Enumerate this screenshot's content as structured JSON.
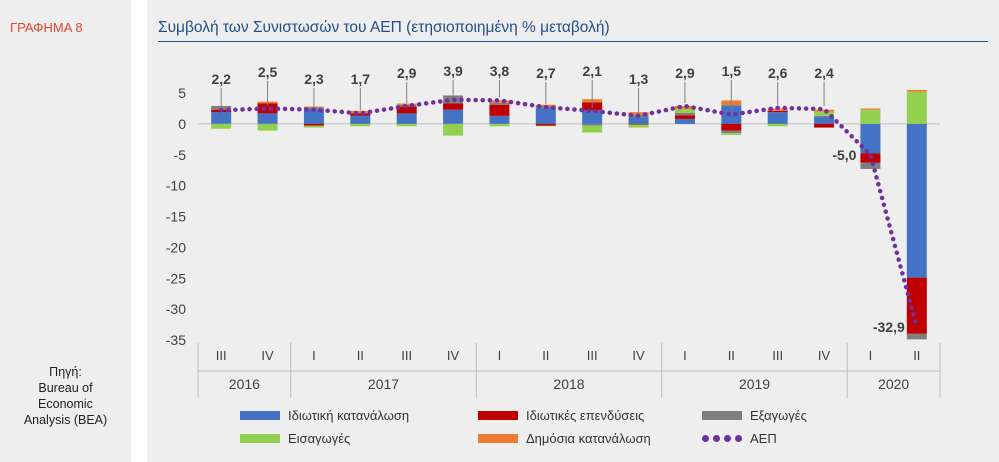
{
  "side_label": "ΓΡΑΦΗΜΑ 8",
  "source": [
    "Πηγή:",
    "Bureau of",
    "Economic",
    "Analysis (BEA)"
  ],
  "chart_data": {
    "type": "bar",
    "subtype": "stacked-bar-with-line",
    "title": "Συμβολή των Συνιστωσών του ΑΕΠ (ετησιοποιημένη % μεταβολή)",
    "ylim": [
      -35,
      5
    ],
    "yticks": [
      "5",
      "0",
      "-5",
      "-10",
      "-15",
      "-20",
      "-25",
      "-30",
      "-35"
    ],
    "quarter_labels": [
      "III",
      "IV",
      "I",
      "II",
      "III",
      "IV",
      "I",
      "II",
      "III",
      "IV",
      "I",
      "II",
      "III",
      "IV",
      "I",
      "II"
    ],
    "years": [
      {
        "label": "2016",
        "span": 2
      },
      {
        "label": "2017",
        "span": 4
      },
      {
        "label": "2018",
        "span": 4
      },
      {
        "label": "2019",
        "span": 4
      },
      {
        "label": "2020",
        "span": 2
      }
    ],
    "series": [
      {
        "name": "Ιδιωτική κατανάλωση",
        "color": "#4472c4",
        "values": [
          1.9,
          1.7,
          2.4,
          1.3,
          1.7,
          2.3,
          1.3,
          2.6,
          2.2,
          1.1,
          0.8,
          3.0,
          1.9,
          1.1,
          -4.8,
          -24.9
        ]
      },
      {
        "name": "Ιδιωτικές επενδύσεις",
        "color": "#c00000",
        "values": [
          0.4,
          1.6,
          -0.3,
          0.4,
          1.1,
          1.0,
          1.8,
          -0.3,
          1.3,
          -0.1,
          0.6,
          -1.1,
          0.2,
          -0.6,
          -1.5,
          -9.1
        ]
      },
      {
        "name": "Εξαγωγές",
        "color": "#7f7f7f",
        "values": [
          0.6,
          0.0,
          0.3,
          0.1,
          0.3,
          1.3,
          0.3,
          0.3,
          -0.3,
          0.4,
          0.4,
          -0.4,
          0.0,
          0.2,
          -1.0,
          -0.9
        ]
      },
      {
        "name": "Εισαγωγές",
        "color": "#92d050",
        "values": [
          -0.8,
          -1.1,
          -0.3,
          -0.4,
          -0.4,
          -1.9,
          -0.4,
          -0.1,
          -1.1,
          -0.5,
          0.6,
          -0.3,
          -0.4,
          0.7,
          2.3,
          5.2
        ]
      },
      {
        "name": "Δημόσια κατανάλωση",
        "color": "#ed7d31",
        "values": [
          0.0,
          0.3,
          0.1,
          0.3,
          0.2,
          0.0,
          0.4,
          0.2,
          0.5,
          0.4,
          0.5,
          0.8,
          0.4,
          0.3,
          0.2,
          0.3
        ]
      }
    ],
    "line": {
      "name": "ΑΕΠ",
      "color": "#7030a0",
      "values": [
        2.2,
        2.5,
        2.3,
        1.7,
        2.9,
        3.9,
        3.8,
        2.7,
        2.1,
        1.3,
        2.9,
        1.5,
        2.6,
        2.4,
        -5.0,
        -32.9
      ]
    },
    "data_labels": [
      "2,2",
      "2,5",
      "2,3",
      "1,7",
      "2,9",
      "3,9",
      "3,8",
      "2,7",
      "2,1",
      "1,3",
      "2,9",
      "1,5",
      "2,6",
      "2,4",
      "-5,0",
      "-32,9"
    ]
  }
}
